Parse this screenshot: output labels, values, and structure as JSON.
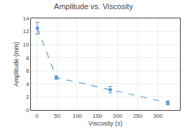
{
  "chart_data": {
    "type": "line",
    "title": "Amplitude vs. Viscosity",
    "xlabel": "Viscosity (s)",
    "ylabel": "Amplitude (mm)",
    "x": [
      1,
      48,
      182,
      325
    ],
    "values": [
      12.5,
      4.95,
      3.1,
      1.1
    ],
    "errors": [
      0.9,
      0.25,
      0.5,
      0.3
    ],
    "color": "#5b9bd5",
    "line_style": "dashed",
    "marker": "circle",
    "xlim": [
      -15,
      355
    ],
    "ylim": [
      0,
      14
    ],
    "xticks": [
      0,
      50,
      100,
      150,
      200,
      250,
      300
    ],
    "yticks": [
      0,
      2,
      4,
      6,
      8,
      10,
      12,
      14
    ],
    "grid": true
  }
}
